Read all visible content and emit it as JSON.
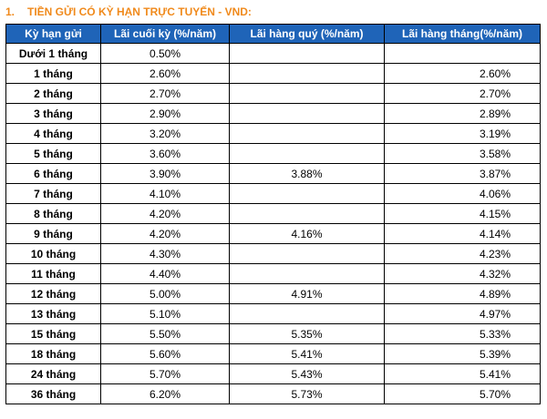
{
  "section": {
    "number": "1.",
    "title": "TIỀN GỬI CÓ KỲ HẠN TRỰC TUYẾN - VND:"
  },
  "table": {
    "headers": [
      "Kỳ hạn gửi",
      "Lãi cuối kỳ (%/năm)",
      "Lãi hàng quý (%/năm)",
      "Lãi hàng tháng(%/năm)"
    ],
    "rows": [
      {
        "term": "Dưới 1 tháng",
        "end": "0.50%",
        "quarterly": "",
        "monthly": ""
      },
      {
        "term": "1 tháng",
        "end": "2.60%",
        "quarterly": "",
        "monthly": "2.60%"
      },
      {
        "term": "2 tháng",
        "end": "2.70%",
        "quarterly": "",
        "monthly": "2.70%"
      },
      {
        "term": "3 tháng",
        "end": "2.90%",
        "quarterly": "",
        "monthly": "2.89%"
      },
      {
        "term": "4 tháng",
        "end": "3.20%",
        "quarterly": "",
        "monthly": "3.19%"
      },
      {
        "term": "5 tháng",
        "end": "3.60%",
        "quarterly": "",
        "monthly": "3.58%"
      },
      {
        "term": "6 tháng",
        "end": "3.90%",
        "quarterly": "3.88%",
        "monthly": "3.87%"
      },
      {
        "term": "7 tháng",
        "end": "4.10%",
        "quarterly": "",
        "monthly": "4.06%"
      },
      {
        "term": "8 tháng",
        "end": "4.20%",
        "quarterly": "",
        "monthly": "4.15%"
      },
      {
        "term": "9 tháng",
        "end": "4.20%",
        "quarterly": "4.16%",
        "monthly": "4.14%"
      },
      {
        "term": "10 tháng",
        "end": "4.30%",
        "quarterly": "",
        "monthly": "4.23%"
      },
      {
        "term": "11 tháng",
        "end": "4.40%",
        "quarterly": "",
        "monthly": "4.32%"
      },
      {
        "term": "12 tháng",
        "end": "5.00%",
        "quarterly": "4.91%",
        "monthly": "4.89%"
      },
      {
        "term": "13 tháng",
        "end": "5.10%",
        "quarterly": "",
        "monthly": "4.97%"
      },
      {
        "term": "15 tháng",
        "end": "5.50%",
        "quarterly": "5.35%",
        "monthly": "5.33%"
      },
      {
        "term": "18 tháng",
        "end": "5.60%",
        "quarterly": "5.41%",
        "monthly": "5.39%"
      },
      {
        "term": "24 tháng",
        "end": "5.70%",
        "quarterly": "5.43%",
        "monthly": "5.41%"
      },
      {
        "term": "36 tháng",
        "end": "6.20%",
        "quarterly": "5.73%",
        "monthly": "5.70%"
      }
    ]
  },
  "colors": {
    "heading": "#f08a1c",
    "header_bg": "#1f64b8",
    "header_text": "#ffffff"
  }
}
